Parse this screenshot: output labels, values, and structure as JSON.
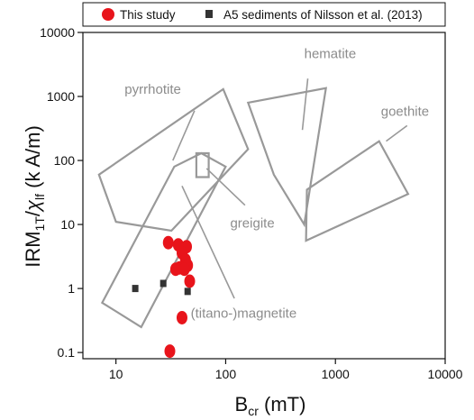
{
  "chart_data": {
    "type": "scatter",
    "xscale": "log",
    "yscale": "log",
    "xlim": [
      5,
      10000
    ],
    "ylim": [
      0.08,
      10000
    ],
    "x_ticks": [
      "10",
      "100",
      "1000",
      "10000"
    ],
    "y_ticks": [
      "0.1",
      "1",
      "10",
      "100",
      "1000",
      "10000"
    ],
    "xlabel": {
      "main": "B",
      "sub": "cr",
      "rest": " (mT)"
    },
    "ylabel": {
      "a": "IRM",
      "b": "1T",
      "c": "/",
      "d": "χ",
      "e": "lf",
      "f": " (k A/m)"
    },
    "legend": {
      "position": "top",
      "entries": [
        {
          "label": "This study",
          "marker": "circle",
          "color": "#e8141b"
        },
        {
          "label": "A5 sediments of Nilsson et al. (2013)",
          "marker": "square",
          "color": "#333333"
        }
      ]
    },
    "series": [
      {
        "name": "This study",
        "color": "#e8141b",
        "points": [
          {
            "x": 30,
            "y": 5.2
          },
          {
            "x": 37,
            "y": 4.8
          },
          {
            "x": 44,
            "y": 4.5
          },
          {
            "x": 40,
            "y": 3.6
          },
          {
            "x": 43,
            "y": 2.8
          },
          {
            "x": 45,
            "y": 2.3
          },
          {
            "x": 38,
            "y": 2.1
          },
          {
            "x": 35,
            "y": 2.0
          },
          {
            "x": 42,
            "y": 2.0
          },
          {
            "x": 47,
            "y": 1.3
          },
          {
            "x": 40,
            "y": 0.35
          },
          {
            "x": 31,
            "y": 0.105
          }
        ]
      },
      {
        "name": "A5 sediments of Nilsson et al. (2013)",
        "color": "#333333",
        "points": [
          {
            "x": 15,
            "y": 1.0
          },
          {
            "x": 27,
            "y": 1.2
          },
          {
            "x": 45,
            "y": 0.9
          }
        ]
      }
    ],
    "regions": [
      {
        "name": "pyrrhotite",
        "label": "pyrrhotite",
        "color": "#999999",
        "polygon": [
          [
            7,
            60
          ],
          [
            95,
            1300
          ],
          [
            160,
            150
          ],
          [
            32,
            8
          ],
          [
            10,
            11
          ]
        ],
        "label_at": [
          12,
          1100
        ],
        "leader": [
          [
            33,
            100
          ],
          [
            52,
            600
          ]
        ]
      },
      {
        "name": "hematite",
        "label": "hematite",
        "color": "#999999",
        "polygon": [
          [
            160,
            800
          ],
          [
            820,
            1350
          ],
          [
            520,
            10
          ],
          [
            275,
            60
          ]
        ],
        "label_at": [
          520,
          4000
        ],
        "leader": [
          [
            500,
            300
          ],
          [
            560,
            1900
          ]
        ]
      },
      {
        "name": "goethite",
        "label": "goethite",
        "color": "#999999",
        "polygon": [
          [
            550,
            35
          ],
          [
            2500,
            200
          ],
          [
            4600,
            30
          ],
          [
            540,
            5.6
          ]
        ],
        "label_at": [
          2600,
          500
        ],
        "leader": [
          [
            2900,
            200
          ],
          [
            4500,
            350
          ]
        ]
      },
      {
        "name": "greigite",
        "label": "greigite",
        "color": "#999999",
        "polygon": [
          [
            54,
            130
          ],
          [
            70,
            130
          ],
          [
            70,
            55
          ],
          [
            54,
            55
          ]
        ],
        "label_at": [
          110,
          9
        ],
        "leader": [
          [
            67,
            75
          ],
          [
            150,
            20
          ]
        ]
      },
      {
        "name": "titano-magnetite",
        "label": "(titano-)magnetite",
        "color": "#999999",
        "polygon": [
          [
            7.5,
            0.6
          ],
          [
            17,
            0.25
          ],
          [
            100,
            80
          ],
          [
            60,
            130
          ],
          [
            34,
            80
          ]
        ],
        "label_at": [
          48,
          0.35
        ],
        "leader": [
          [
            40,
            40
          ],
          [
            120,
            0.7
          ]
        ]
      }
    ]
  }
}
